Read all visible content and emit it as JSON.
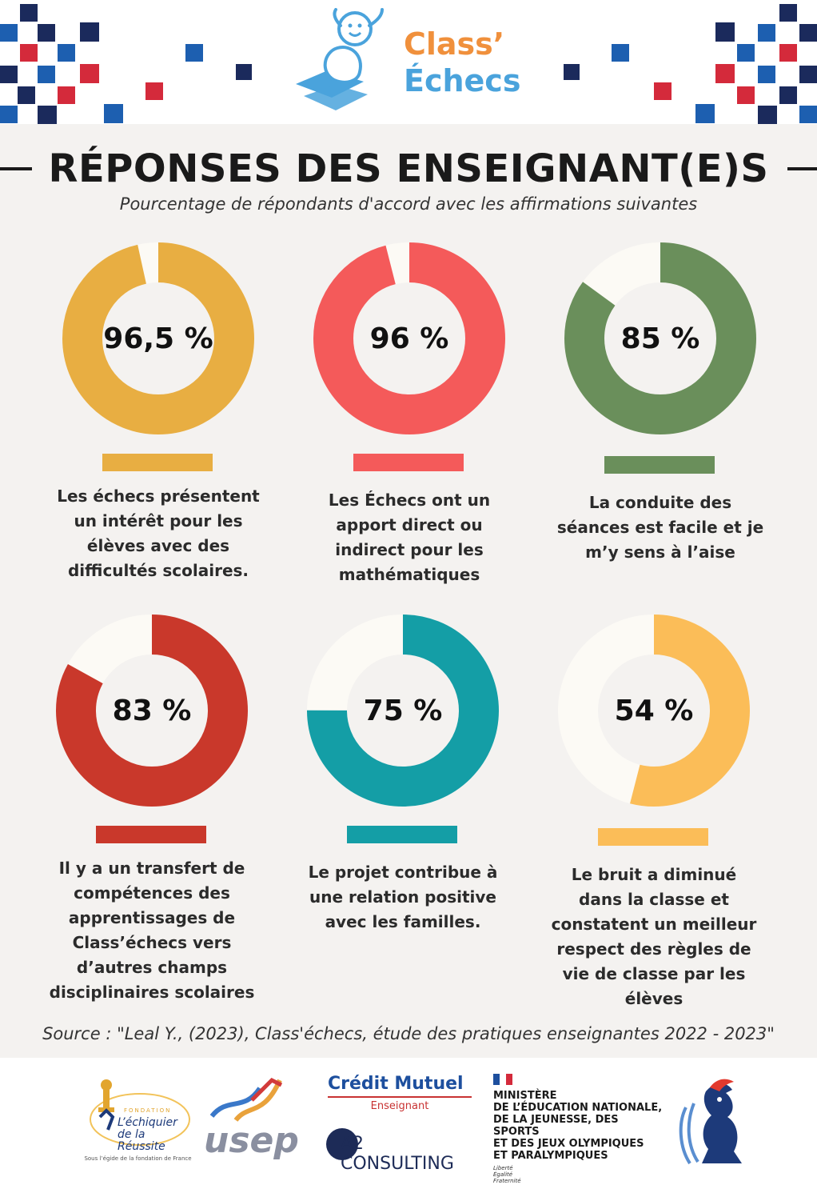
{
  "header": {
    "logo_line1": "Class’",
    "logo_line2": "Échecs",
    "colors": {
      "navy": "#1b2a5c",
      "blue": "#1d5fb0",
      "red": "#d42a3b",
      "orange": "#f0903c",
      "sky": "#4aa3dc"
    }
  },
  "page": {
    "title": "RÉPONSES DES ENSEIGNANT(E)S",
    "subtitle": "Pourcentage de répondants d'accord avec les affirmations suivantes",
    "source": "Source : \"Leal Y., (2023), Class'échecs, étude des pratiques enseignantes 2022 - 2023\""
  },
  "chart_data": {
    "type": "pie",
    "title": "RÉPONSES DES ENSEIGNANT(E)S",
    "subtitle": "Pourcentage de répondants d'accord avec les affirmations suivantes",
    "items": [
      {
        "value": 96.5,
        "label": "96,5 %",
        "color": "#e8ae42",
        "caption": "Les échecs présentent\nun intérêt pour les\nélèves avec des\ndifficultés scolaires."
      },
      {
        "value": 96,
        "label": "96 %",
        "color": "#f45a5a",
        "caption": "Les Échecs ont un\napport direct ou\nindirect pour les\nmathématiques"
      },
      {
        "value": 85,
        "label": "85 %",
        "color": "#6a8f5b",
        "caption": "La conduite des\nséances est facile et je\nm’y sens à l’aise"
      },
      {
        "value": 83,
        "label": "83 %",
        "color": "#c9382b",
        "caption": "Il y a un transfert de\ncompétences des\napprentissages de\nClass’échecs vers\nd’autres champs\ndisciplinaires scolaires"
      },
      {
        "value": 75,
        "label": "75 %",
        "color": "#149ea6",
        "caption": "Le projet contribue à\nune relation positive\navec les familles."
      },
      {
        "value": 54,
        "label": "54 %",
        "color": "#fbbd58",
        "caption": "Le bruit a diminué\ndans la classe et\nconstatent un meilleur\nrespect des règles de\nvie de classe par les\nélèves"
      }
    ],
    "remainder_color": "#fcfaf5"
  },
  "footer": {
    "fondation_top": "FONDATION",
    "fondation_name": "L’échiquier de la Réussite",
    "fondation_small": "Sous l’égide de la fondation de France",
    "usep": "usep",
    "credit_mutuel": "Crédit Mutuel",
    "credit_mutuel_sub": "Enseignant",
    "a2": "A2 CONSULTING",
    "ministere": "MINISTÈRE\nDE L’ÉDUCATION NATIONALE,\nDE LA JEUNESSE, DES SPORTS\nET DES JEUX OLYMPIQUES\nET PARALYMPIQUES",
    "devise": "Liberté\nÉgalité\nFraternité"
  }
}
